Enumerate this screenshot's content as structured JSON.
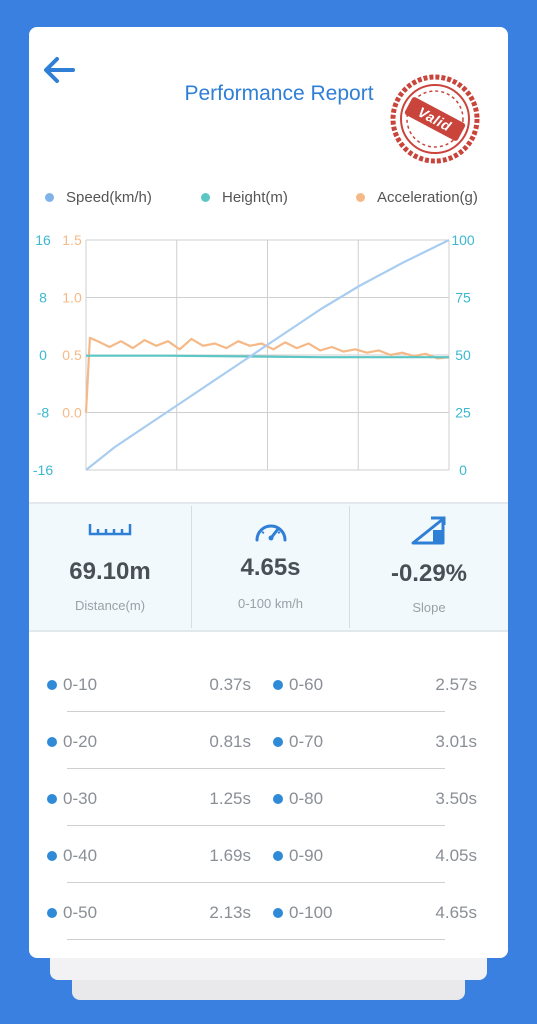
{
  "header": {
    "title": "Performance Report",
    "stamp_text": "Valid",
    "back_icon": "arrow-left-icon"
  },
  "legend": [
    {
      "label": "Speed(km/h)",
      "color": "#7fb3e8"
    },
    {
      "label": "Height(m)",
      "color": "#5cc6c4"
    },
    {
      "label": "Acceleration(g)",
      "color": "#f5b987"
    }
  ],
  "chart_data": {
    "type": "line",
    "grid": true,
    "axes": {
      "height_left": {
        "ticks": [
          "16",
          "8",
          "0",
          "-8",
          "-16"
        ],
        "range": [
          -16,
          16
        ],
        "color": "#3cb8d0"
      },
      "accel_left": {
        "ticks": [
          "1.5",
          "1.0",
          "0.5",
          "0.0"
        ],
        "range": [
          -0.5,
          1.5
        ],
        "color": "#f5b987"
      },
      "speed_right": {
        "ticks": [
          "100",
          "75",
          "50",
          "25",
          "0"
        ],
        "range": [
          0,
          100
        ],
        "color": "#3cb8d0"
      }
    },
    "x_range": [
      0,
      4.65
    ],
    "series": [
      {
        "name": "Speed(km/h)",
        "axis": "speed_right",
        "color": "#a9cdf0",
        "x": [
          0,
          0.37,
          0.81,
          1.25,
          1.69,
          2.13,
          2.57,
          3.01,
          3.5,
          4.05,
          4.65
        ],
        "y": [
          0,
          10,
          20,
          30,
          40,
          50,
          60,
          70,
          80,
          90,
          100
        ]
      },
      {
        "name": "Height(m)",
        "axis": "height_left",
        "color": "#5cc6c4",
        "x": [
          0,
          1,
          2,
          3,
          4,
          4.65
        ],
        "y": [
          -0.1,
          -0.1,
          -0.2,
          -0.3,
          -0.3,
          -0.3
        ]
      },
      {
        "name": "Acceleration(g)",
        "axis": "accel_left",
        "color": "#f5b987",
        "x": [
          0,
          0.05,
          0.15,
          0.3,
          0.45,
          0.6,
          0.75,
          0.9,
          1.05,
          1.2,
          1.35,
          1.5,
          1.65,
          1.8,
          1.95,
          2.1,
          2.25,
          2.4,
          2.55,
          2.7,
          2.85,
          3.0,
          3.15,
          3.3,
          3.45,
          3.6,
          3.75,
          3.9,
          4.05,
          4.2,
          4.35,
          4.5,
          4.65
        ],
        "y": [
          0.0,
          0.65,
          0.62,
          0.57,
          0.62,
          0.56,
          0.63,
          0.58,
          0.62,
          0.55,
          0.64,
          0.58,
          0.6,
          0.56,
          0.62,
          0.58,
          0.6,
          0.55,
          0.61,
          0.56,
          0.6,
          0.54,
          0.57,
          0.53,
          0.55,
          0.52,
          0.54,
          0.5,
          0.52,
          0.49,
          0.51,
          0.47,
          0.48
        ]
      }
    ]
  },
  "stats": [
    {
      "value": "69.10m",
      "label": "Distance(m)",
      "icon": "ruler-icon"
    },
    {
      "value": "4.65s",
      "label": "0-100 km/h",
      "icon": "speedometer-icon"
    },
    {
      "value": "-0.29%",
      "label": "Slope",
      "icon": "slope-icon"
    }
  ],
  "splits": [
    {
      "left": {
        "range": "0-10",
        "time": "0.37s"
      },
      "right": {
        "range": "0-60",
        "time": "2.57s"
      }
    },
    {
      "left": {
        "range": "0-20",
        "time": "0.81s"
      },
      "right": {
        "range": "0-70",
        "time": "3.01s"
      }
    },
    {
      "left": {
        "range": "0-30",
        "time": "1.25s"
      },
      "right": {
        "range": "0-80",
        "time": "3.50s"
      }
    },
    {
      "left": {
        "range": "0-40",
        "time": "1.69s"
      },
      "right": {
        "range": "0-90",
        "time": "4.05s"
      }
    },
    {
      "left": {
        "range": "0-50",
        "time": "2.13s"
      },
      "right": {
        "range": "0-100",
        "time": "4.65s"
      }
    }
  ]
}
